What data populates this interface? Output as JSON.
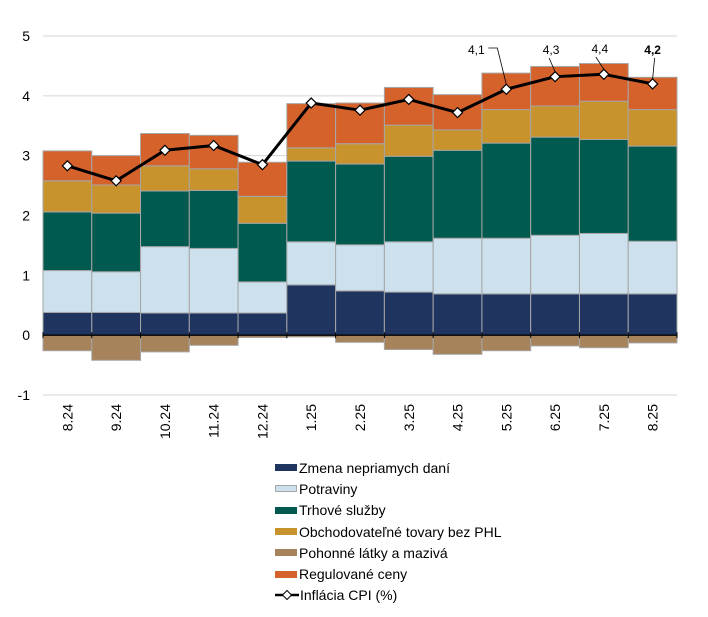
{
  "chart_data": {
    "type": "bar",
    "stacked": true,
    "title": "",
    "xlabel": "",
    "ylabel": "",
    "ylim": [
      -1,
      5
    ],
    "yticks": [
      "-1",
      "0",
      "1",
      "2",
      "3",
      "4",
      "5"
    ],
    "grid": true,
    "legend_position": "bottom",
    "categories": [
      "8.24",
      "9.24",
      "10.24",
      "11.24",
      "12.24",
      "1.25",
      "2.25",
      "3.25",
      "4.25",
      "5.25",
      "6.25",
      "7.25",
      "8.25"
    ],
    "series": [
      {
        "name": "Zmena nepriamych daní",
        "color": "#1f3560",
        "values": [
          0.38,
          0.38,
          0.37,
          0.37,
          0.37,
          0.84,
          0.74,
          0.72,
          0.69,
          0.69,
          0.69,
          0.69,
          0.69
        ]
      },
      {
        "name": "Potraviny",
        "color": "#cce0ed",
        "values": [
          0.7,
          0.68,
          1.11,
          1.08,
          0.52,
          0.72,
          0.77,
          0.84,
          0.93,
          0.93,
          0.98,
          1.01,
          0.88
        ]
      },
      {
        "name": "Trhové služby",
        "color": "#005a4f",
        "values": [
          0.98,
          0.98,
          0.93,
          0.97,
          0.98,
          1.35,
          1.35,
          1.43,
          1.47,
          1.59,
          1.64,
          1.57,
          1.59
        ]
      },
      {
        "name": "Obchodovateľné tovary bez PHL",
        "color": "#c8922c",
        "values": [
          0.52,
          0.47,
          0.42,
          0.36,
          0.45,
          0.22,
          0.34,
          0.52,
          0.34,
          0.56,
          0.52,
          0.64,
          0.61
        ]
      },
      {
        "name": "Pohonné látky a mazivá",
        "color": "#a6835a",
        "values": [
          -0.26,
          -0.42,
          -0.28,
          -0.17,
          -0.04,
          -0.03,
          -0.12,
          -0.24,
          -0.32,
          -0.26,
          -0.18,
          -0.21,
          -0.13
        ]
      },
      {
        "name": "Regulované ceny",
        "color": "#d5612b",
        "values": [
          0.5,
          0.49,
          0.54,
          0.56,
          0.57,
          0.74,
          0.68,
          0.63,
          0.59,
          0.61,
          0.66,
          0.63,
          0.54
        ]
      }
    ],
    "line": {
      "name": "Inflácia CPI (%)",
      "color": "#000000",
      "values": [
        2.83,
        2.58,
        3.09,
        3.17,
        2.85,
        3.88,
        3.76,
        3.94,
        3.72,
        4.11,
        4.32,
        4.36,
        4.2
      ]
    },
    "annotations": [
      {
        "category": "5.25",
        "text": "4,1",
        "bold": false
      },
      {
        "category": "6.25",
        "text": "4,3",
        "bold": false
      },
      {
        "category": "7.25",
        "text": "4,4",
        "bold": false
      },
      {
        "category": "8.25",
        "text": "4,2",
        "bold": true
      }
    ]
  },
  "legend": {
    "items": [
      {
        "label": "Zmena nepriamych daní",
        "kind": "box",
        "color": "#1f3560"
      },
      {
        "label": "Potraviny",
        "kind": "box",
        "color": "#cce0ed"
      },
      {
        "label": "Trhové služby",
        "kind": "box",
        "color": "#005a4f"
      },
      {
        "label": "Obchodovateľné tovary bez PHL",
        "kind": "box",
        "color": "#c8922c"
      },
      {
        "label": "Pohonné látky a mazivá",
        "kind": "box",
        "color": "#a6835a"
      },
      {
        "label": "Regulované ceny",
        "kind": "box",
        "color": "#d5612b"
      },
      {
        "label": "Inflácia CPI (%)",
        "kind": "line",
        "color": "#000000"
      }
    ]
  }
}
